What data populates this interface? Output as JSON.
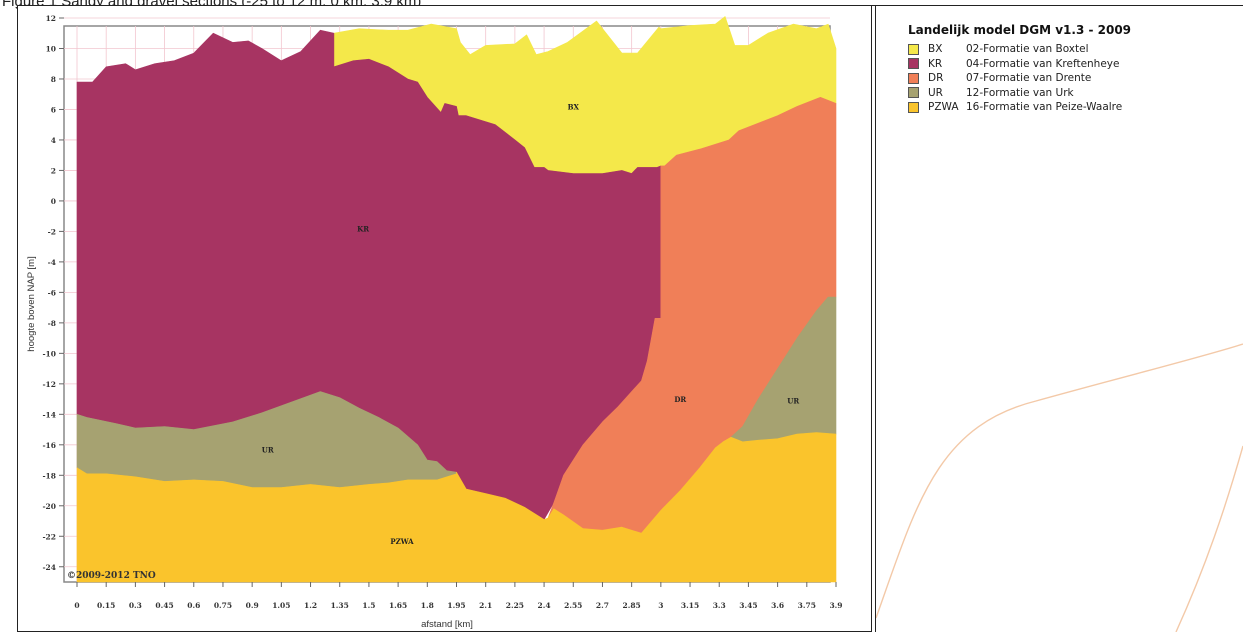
{
  "header": {
    "text": "Figure 1 Sandy and gravel sections (-25 to 12 m, 0 km, 3.9 km)"
  },
  "legend": {
    "title": "Landelijk model DGM v1.3 - 2009",
    "items": [
      {
        "code": "BX",
        "label": "02-Formatie van Boxtel",
        "color": "#f4e84a"
      },
      {
        "code": "KR",
        "label": "04-Formatie van Kreftenheye",
        "color": "#a73462"
      },
      {
        "code": "DR",
        "label": "07-Formatie van Drente",
        "color": "#f07f58"
      },
      {
        "code": "UR",
        "label": "12-Formatie van Urk",
        "color": "#a6a271"
      },
      {
        "code": "PZWA",
        "label": "16-Formatie van Peize-Waalre",
        "color": "#fac42c"
      }
    ]
  },
  "chart_data": {
    "type": "area",
    "xlabel": "afstand [km]",
    "ylabel": "hoogte boven NAP [m]",
    "xlim": [
      0,
      3.9
    ],
    "ylim": [
      -25,
      12
    ],
    "grid": true,
    "copyright": "©2009-2012 TNO",
    "x_ticks": [
      0,
      0.15,
      0.3,
      0.45,
      0.6,
      0.75,
      0.9,
      1.05,
      1.2,
      1.35,
      1.5,
      1.65,
      1.8,
      1.95,
      2.1,
      2.25,
      2.4,
      2.55,
      2.7,
      2.85,
      3,
      3.15,
      3.3,
      3.45,
      3.6,
      3.75,
      3.9
    ],
    "y_ticks": [
      12,
      10,
      8,
      6,
      4,
      2,
      0,
      -2,
      -4,
      -6,
      -8,
      -10,
      -12,
      -14,
      -16,
      -18,
      -20,
      -22,
      -24
    ],
    "layers": [
      {
        "code": "BX",
        "color": "#f4e84a",
        "polygon": [
          [
            1.32,
            11.0
          ],
          [
            1.45,
            11.3
          ],
          [
            1.6,
            11.2
          ],
          [
            1.7,
            11.2
          ],
          [
            1.82,
            11.6
          ],
          [
            1.95,
            11.3
          ],
          [
            1.97,
            10.4
          ],
          [
            2.02,
            9.6
          ],
          [
            2.1,
            10.2
          ],
          [
            2.25,
            10.3
          ],
          [
            2.31,
            10.9
          ],
          [
            2.36,
            9.6
          ],
          [
            2.42,
            9.8
          ],
          [
            2.52,
            10.4
          ],
          [
            2.67,
            11.8
          ],
          [
            2.8,
            9.7
          ],
          [
            2.88,
            9.7
          ],
          [
            2.99,
            11.4
          ],
          [
            3.0,
            11.3
          ],
          [
            3.15,
            11.5
          ],
          [
            3.28,
            11.6
          ],
          [
            3.33,
            12.1
          ],
          [
            3.38,
            10.2
          ],
          [
            3.45,
            10.2
          ],
          [
            3.55,
            11.0
          ],
          [
            3.68,
            11.6
          ],
          [
            3.8,
            11.3
          ],
          [
            3.86,
            11.6
          ],
          [
            3.9,
            10.0
          ],
          [
            3.9,
            6.4
          ],
          [
            3.82,
            6.8
          ],
          [
            3.7,
            6.2
          ],
          [
            3.6,
            5.6
          ],
          [
            3.4,
            4.6
          ],
          [
            3.35,
            4.0
          ],
          [
            3.2,
            3.4
          ],
          [
            3.08,
            3.0
          ],
          [
            3.02,
            2.3
          ],
          [
            2.98,
            2.2
          ],
          [
            2.88,
            2.2
          ],
          [
            2.85,
            1.8
          ],
          [
            2.8,
            2.0
          ],
          [
            2.7,
            1.8
          ],
          [
            2.55,
            1.8
          ],
          [
            2.42,
            2.0
          ],
          [
            2.4,
            2.2
          ],
          [
            2.35,
            2.2
          ],
          [
            2.3,
            3.5
          ],
          [
            2.25,
            4.0
          ],
          [
            2.15,
            5.0
          ],
          [
            2.0,
            5.6
          ],
          [
            1.96,
            5.6
          ],
          [
            1.95,
            6.2
          ],
          [
            1.89,
            6.4
          ],
          [
            1.87,
            5.8
          ],
          [
            1.8,
            6.8
          ],
          [
            1.75,
            7.8
          ],
          [
            1.7,
            8.0
          ],
          [
            1.6,
            8.8
          ],
          [
            1.5,
            9.3
          ],
          [
            1.42,
            9.2
          ],
          [
            1.32,
            8.8
          ]
        ]
      },
      {
        "code": "KR",
        "color": "#a73462",
        "polygon": [
          [
            0.0,
            7.8
          ],
          [
            0.08,
            7.8
          ],
          [
            0.15,
            8.8
          ],
          [
            0.25,
            9.0
          ],
          [
            0.3,
            8.6
          ],
          [
            0.4,
            9.0
          ],
          [
            0.5,
            9.2
          ],
          [
            0.6,
            9.7
          ],
          [
            0.7,
            11.0
          ],
          [
            0.8,
            10.4
          ],
          [
            0.88,
            10.5
          ],
          [
            0.95,
            10.0
          ],
          [
            1.05,
            9.2
          ],
          [
            1.15,
            9.8
          ],
          [
            1.25,
            11.2
          ],
          [
            1.32,
            11.0
          ],
          [
            1.32,
            8.8
          ],
          [
            1.42,
            9.2
          ],
          [
            1.5,
            9.3
          ],
          [
            1.6,
            8.8
          ],
          [
            1.7,
            8.0
          ],
          [
            1.75,
            7.8
          ],
          [
            1.8,
            6.8
          ],
          [
            1.87,
            5.8
          ],
          [
            1.89,
            6.4
          ],
          [
            1.95,
            6.2
          ],
          [
            1.96,
            5.6
          ],
          [
            2.0,
            5.6
          ],
          [
            2.15,
            5.0
          ],
          [
            2.25,
            4.0
          ],
          [
            2.3,
            3.5
          ],
          [
            2.35,
            2.2
          ],
          [
            2.4,
            2.2
          ],
          [
            2.42,
            2.0
          ],
          [
            2.55,
            1.8
          ],
          [
            2.7,
            1.8
          ],
          [
            2.8,
            2.0
          ],
          [
            2.85,
            1.8
          ],
          [
            2.88,
            2.2
          ],
          [
            2.98,
            2.2
          ],
          [
            3.0,
            2.3
          ],
          [
            3.0,
            -7.7
          ],
          [
            2.97,
            -7.7
          ],
          [
            2.93,
            -10.5
          ],
          [
            2.9,
            -11.8
          ],
          [
            2.85,
            -12.5
          ],
          [
            2.78,
            -13.5
          ],
          [
            2.7,
            -14.5
          ],
          [
            2.6,
            -16.0
          ],
          [
            2.5,
            -18.0
          ],
          [
            2.45,
            -19.8
          ],
          [
            2.4,
            -20.9
          ],
          [
            2.3,
            -20.1
          ],
          [
            2.2,
            -19.5
          ],
          [
            2.1,
            -19.2
          ],
          [
            2.0,
            -18.9
          ],
          [
            1.95,
            -17.8
          ],
          [
            1.9,
            -17.7
          ],
          [
            1.85,
            -17.1
          ],
          [
            1.8,
            -17.0
          ],
          [
            1.75,
            -16.0
          ],
          [
            1.65,
            -14.9
          ],
          [
            1.55,
            -14.2
          ],
          [
            1.45,
            -13.6
          ],
          [
            1.35,
            -12.9
          ],
          [
            1.25,
            -12.5
          ],
          [
            1.1,
            -13.2
          ],
          [
            0.95,
            -13.9
          ],
          [
            0.8,
            -14.5
          ],
          [
            0.6,
            -15.0
          ],
          [
            0.45,
            -14.8
          ],
          [
            0.3,
            -14.9
          ],
          [
            0.2,
            -14.6
          ],
          [
            0.05,
            -14.2
          ],
          [
            0.0,
            -14.0
          ]
        ]
      },
      {
        "code": "DR",
        "color": "#f07f58",
        "polygon": [
          [
            3.0,
            2.3
          ],
          [
            3.02,
            2.3
          ],
          [
            3.08,
            3.0
          ],
          [
            3.2,
            3.4
          ],
          [
            3.35,
            4.0
          ],
          [
            3.4,
            4.6
          ],
          [
            3.6,
            5.6
          ],
          [
            3.7,
            6.2
          ],
          [
            3.82,
            6.8
          ],
          [
            3.9,
            6.4
          ],
          [
            3.9,
            -6.3
          ],
          [
            3.86,
            -6.3
          ],
          [
            3.8,
            -7.2
          ],
          [
            3.7,
            -9.0
          ],
          [
            3.6,
            -11.0
          ],
          [
            3.5,
            -13.0
          ],
          [
            3.42,
            -14.8
          ],
          [
            3.36,
            -15.5
          ],
          [
            3.32,
            -15.8
          ],
          [
            3.28,
            -16.2
          ],
          [
            3.2,
            -17.5
          ],
          [
            3.1,
            -19.0
          ],
          [
            3.0,
            -20.3
          ],
          [
            2.9,
            -21.8
          ],
          [
            2.8,
            -21.4
          ],
          [
            2.7,
            -21.6
          ],
          [
            2.6,
            -21.5
          ],
          [
            2.5,
            -20.6
          ],
          [
            2.45,
            -20.2
          ],
          [
            2.42,
            -20.8
          ],
          [
            2.45,
            -19.8
          ],
          [
            2.5,
            -18.0
          ],
          [
            2.6,
            -16.0
          ],
          [
            2.7,
            -14.5
          ],
          [
            2.78,
            -13.5
          ],
          [
            2.85,
            -12.5
          ],
          [
            2.9,
            -11.8
          ],
          [
            2.93,
            -10.5
          ],
          [
            2.97,
            -7.7
          ],
          [
            3.0,
            -7.7
          ]
        ]
      },
      {
        "code": "UR",
        "color": "#a6a271",
        "polygon": [
          [
            0.0,
            -14.0
          ],
          [
            0.05,
            -14.2
          ],
          [
            0.2,
            -14.6
          ],
          [
            0.3,
            -14.9
          ],
          [
            0.45,
            -14.8
          ],
          [
            0.6,
            -15.0
          ],
          [
            0.8,
            -14.5
          ],
          [
            0.95,
            -13.9
          ],
          [
            1.1,
            -13.2
          ],
          [
            1.25,
            -12.5
          ],
          [
            1.35,
            -12.9
          ],
          [
            1.45,
            -13.6
          ],
          [
            1.55,
            -14.2
          ],
          [
            1.65,
            -14.9
          ],
          [
            1.75,
            -16.0
          ],
          [
            1.8,
            -17.0
          ],
          [
            1.85,
            -17.1
          ],
          [
            1.9,
            -17.7
          ],
          [
            1.95,
            -17.8
          ],
          [
            1.95,
            -17.9
          ],
          [
            1.85,
            -18.3
          ],
          [
            1.7,
            -18.3
          ],
          [
            1.6,
            -18.5
          ],
          [
            1.5,
            -18.6
          ],
          [
            1.35,
            -18.8
          ],
          [
            1.2,
            -18.6
          ],
          [
            1.05,
            -18.8
          ],
          [
            0.9,
            -18.8
          ],
          [
            0.75,
            -18.4
          ],
          [
            0.6,
            -18.3
          ],
          [
            0.45,
            -18.4
          ],
          [
            0.3,
            -18.1
          ],
          [
            0.15,
            -17.9
          ],
          [
            0.05,
            -17.9
          ],
          [
            0.0,
            -17.5
          ]
        ]
      },
      {
        "code": "UR",
        "color": "#a6a271",
        "polygon": [
          [
            3.42,
            -14.8
          ],
          [
            3.5,
            -13.0
          ],
          [
            3.6,
            -11.0
          ],
          [
            3.7,
            -9.0
          ],
          [
            3.8,
            -7.2
          ],
          [
            3.86,
            -6.3
          ],
          [
            3.9,
            -6.3
          ],
          [
            3.9,
            -15.3
          ],
          [
            3.8,
            -15.2
          ],
          [
            3.7,
            -15.3
          ],
          [
            3.6,
            -15.6
          ],
          [
            3.5,
            -15.7
          ],
          [
            3.42,
            -15.8
          ],
          [
            3.36,
            -15.5
          ]
        ]
      },
      {
        "code": "PZWA",
        "color": "#fac42c",
        "polygon": [
          [
            0.0,
            -17.5
          ],
          [
            0.05,
            -17.9
          ],
          [
            0.15,
            -17.9
          ],
          [
            0.3,
            -18.1
          ],
          [
            0.45,
            -18.4
          ],
          [
            0.6,
            -18.3
          ],
          [
            0.75,
            -18.4
          ],
          [
            0.9,
            -18.8
          ],
          [
            1.05,
            -18.8
          ],
          [
            1.2,
            -18.6
          ],
          [
            1.35,
            -18.8
          ],
          [
            1.5,
            -18.6
          ],
          [
            1.6,
            -18.5
          ],
          [
            1.7,
            -18.3
          ],
          [
            1.85,
            -18.3
          ],
          [
            1.95,
            -17.9
          ],
          [
            1.95,
            -17.8
          ],
          [
            2.0,
            -18.9
          ],
          [
            2.1,
            -19.2
          ],
          [
            2.2,
            -19.5
          ],
          [
            2.3,
            -20.1
          ],
          [
            2.4,
            -20.9
          ],
          [
            2.42,
            -20.8
          ],
          [
            2.45,
            -20.2
          ],
          [
            2.5,
            -20.6
          ],
          [
            2.6,
            -21.5
          ],
          [
            2.7,
            -21.6
          ],
          [
            2.8,
            -21.4
          ],
          [
            2.9,
            -21.8
          ],
          [
            3.0,
            -20.3
          ],
          [
            3.1,
            -19.0
          ],
          [
            3.2,
            -17.5
          ],
          [
            3.28,
            -16.2
          ],
          [
            3.32,
            -15.8
          ],
          [
            3.36,
            -15.5
          ],
          [
            3.42,
            -15.8
          ],
          [
            3.5,
            -15.7
          ],
          [
            3.6,
            -15.6
          ],
          [
            3.7,
            -15.3
          ],
          [
            3.8,
            -15.2
          ],
          [
            3.9,
            -15.3
          ],
          [
            3.9,
            -25.0
          ],
          [
            0.0,
            -25.0
          ]
        ]
      }
    ],
    "labels": [
      {
        "text": "BX",
        "x": 2.55,
        "y": 6.0
      },
      {
        "text": "KR",
        "x": 1.47,
        "y": -2.0
      },
      {
        "text": "DR",
        "x": 3.1,
        "y": -13.2
      },
      {
        "text": "UR",
        "x": 3.68,
        "y": -13.3
      },
      {
        "text": "UR",
        "x": 0.98,
        "y": -16.5
      },
      {
        "text": "PZWA",
        "x": 1.67,
        "y": -22.5
      }
    ]
  }
}
